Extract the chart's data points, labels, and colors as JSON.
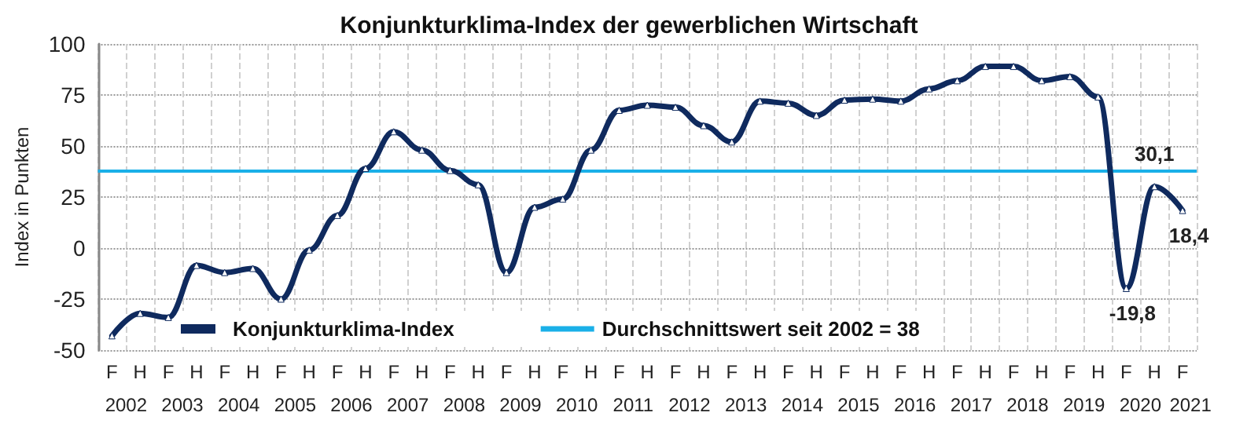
{
  "chart_data": {
    "type": "line",
    "title": "Konjunkturklima-Index der gewerblichen Wirtschaft",
    "ylabel": "Index in Punkten",
    "categories": [
      "F",
      "H",
      "F",
      "H",
      "F",
      "H",
      "F",
      "H",
      "F",
      "H",
      "F",
      "H",
      "F",
      "H",
      "F",
      "H",
      "F",
      "H",
      "F",
      "H",
      "F",
      "H",
      "F",
      "H",
      "F",
      "H",
      "F",
      "H",
      "F",
      "H",
      "F",
      "H",
      "F",
      "H",
      "F",
      "H",
      "F",
      "H",
      "F"
    ],
    "series": [
      {
        "name": "Konjunkturklima-Index",
        "color": "#0f2a5e",
        "values": [
          -43,
          -32,
          -34,
          -8.5,
          -12,
          -10,
          -25,
          -1,
          16,
          39,
          57,
          48,
          38,
          31,
          -12,
          20,
          24,
          48,
          67.5,
          70,
          69,
          60,
          52,
          72,
          71,
          65,
          72.5,
          73,
          72,
          78,
          82,
          89,
          89,
          82,
          84,
          74,
          -19.8,
          30.1,
          18.4
        ],
        "value_labels": [
          null,
          null,
          null,
          null,
          null,
          null,
          null,
          null,
          null,
          null,
          null,
          null,
          null,
          null,
          null,
          null,
          null,
          null,
          null,
          null,
          null,
          null,
          null,
          null,
          null,
          null,
          null,
          null,
          null,
          null,
          null,
          null,
          null,
          null,
          null,
          null,
          "-19,8",
          "30,1",
          "18,4"
        ]
      }
    ],
    "ref_lines": [
      {
        "axis": "y",
        "value": 38,
        "label": "Durchschnittswert seit 2002 = 38",
        "color": "#1ab0e8"
      }
    ],
    "annotations": [
      "2002",
      "2003",
      "2004",
      "2005",
      "2006",
      "2007",
      "2008",
      "2009",
      "2010",
      "2011",
      "2012",
      "2013",
      "2014",
      "2015",
      "2016",
      "2017",
      "2018",
      "2019",
      "2020",
      "2021"
    ],
    "ylim": [
      -50,
      100
    ],
    "yticks": [
      -50,
      -25,
      0,
      25,
      50,
      75,
      100
    ],
    "grid": true,
    "legend": "bottom",
    "marker": "triangle",
    "line_style": "solid"
  }
}
